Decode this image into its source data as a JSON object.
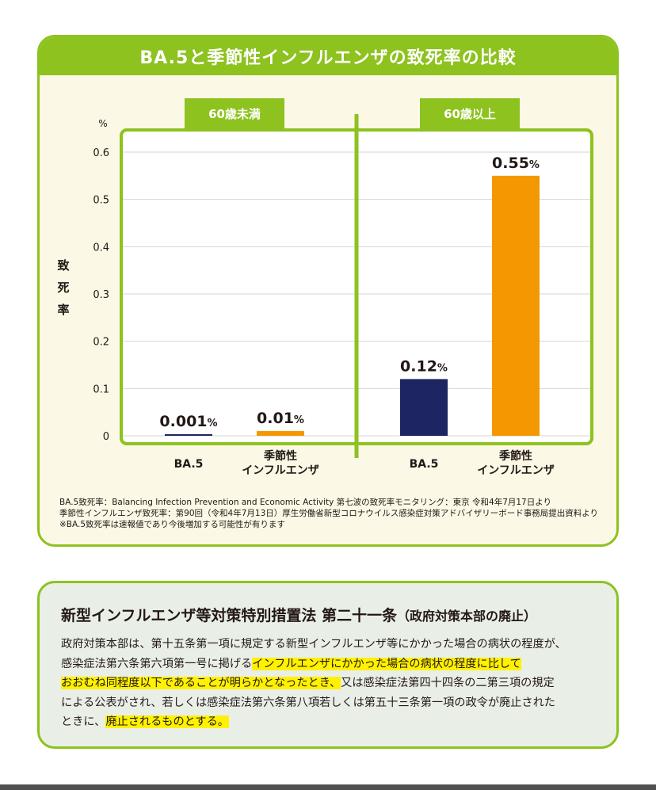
{
  "chart_data": {
    "type": "bar",
    "title": "BA.5と季節性インフルエンザの致死率の比較",
    "ylabel": "致死率",
    "yunit": "%",
    "ylim": [
      0,
      0.6
    ],
    "yticks": [
      "0",
      "0.1",
      "0.2",
      "0.3",
      "0.4",
      "0.5",
      "0.6"
    ],
    "groups": [
      {
        "label": "60歳未満",
        "bars": [
          {
            "category": "BA.5",
            "value": 0.001,
            "value_label": "0.001",
            "color": "#1d2562"
          },
          {
            "category": "季節性 インフルエンザ",
            "value": 0.01,
            "value_label": "0.01",
            "color": "#f39800"
          }
        ]
      },
      {
        "label": "60歳以上",
        "bars": [
          {
            "category": "BA.5",
            "value": 0.12,
            "value_label": "0.12",
            "color": "#1d2562"
          },
          {
            "category": "季節性 インフルエンザ",
            "value": 0.55,
            "value_label": "0.55",
            "color": "#f39800"
          }
        ]
      }
    ],
    "grid": true
  },
  "colors": {
    "accent_green": "#8dc21f",
    "ba5": "#1d2562",
    "influenza": "#f39800",
    "highlight": "#fff100"
  },
  "sources": [
    "BA.5致死率：Balancing Infection Prevention and Economic Activity 第七波の致死率モニタリング：東京 令和4年7月17日より",
    "季節性インフルエンザ致死率：第90回（令和4年7月13日）厚生労働省新型コロナウイルス感染症対策アドバイザリーボード事務局提出資料より",
    "※BA.5致死率は速報値であり今後増加する可能性が有ります"
  ],
  "law": {
    "title": "新型インフルエンザ等対策特別措置法 第二十一条",
    "subtitle": "（政府対策本部の廃止）",
    "lines": [
      [
        {
          "text": "政府対策本部は、第十五条第一項に規定する新型インフルエンザ等にかかった場合の病状の程度が、",
          "hl": false
        }
      ],
      [
        {
          "text": "感染症法第六条第六項第一号に掲げる",
          "hl": false
        },
        {
          "text": "インフルエンザにかかった場合の病状の程度に比して",
          "hl": true
        }
      ],
      [
        {
          "text": "おおむね同程度以下であることが明らかとなったとき、",
          "hl": true
        },
        {
          "text": "又は感染症法第四十四条の二第三項の規定",
          "hl": false
        }
      ],
      [
        {
          "text": "による公表がされ、若しくは感染症法第六条第八項若しくは第五十三条第一項の政令が廃止された",
          "hl": false
        }
      ],
      [
        {
          "text": "ときに、",
          "hl": false
        },
        {
          "text": "廃止されるものとする。",
          "hl": true
        }
      ]
    ]
  }
}
